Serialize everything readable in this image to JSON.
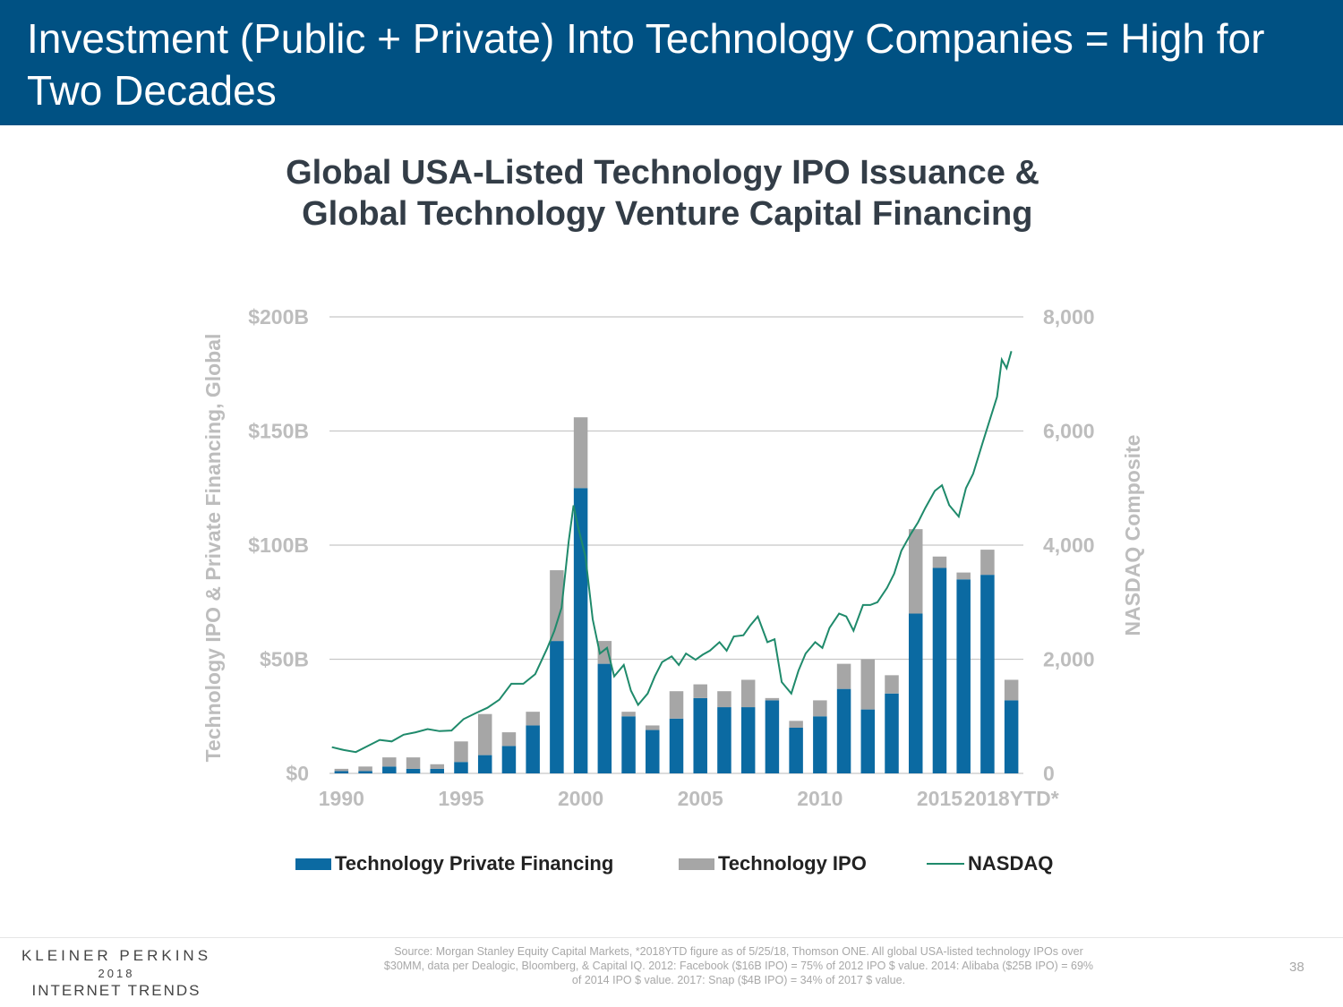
{
  "header": {
    "title": "Investment (Public + Private) Into Technology Companies = High for Two Decades"
  },
  "chart_title": {
    "line1": "Global USA-Listed Technology IPO Issuance &",
    "line2": " Global Technology Venture Capital Financing"
  },
  "chart_data": {
    "type": "bar",
    "stacked": true,
    "categories": [
      "1990",
      "1991",
      "1992",
      "1993",
      "1994",
      "1995",
      "1996",
      "1997",
      "1998",
      "1999",
      "2000",
      "2001",
      "2002",
      "2003",
      "2004",
      "2005",
      "2006",
      "2007",
      "2008",
      "2009",
      "2010",
      "2011",
      "2012",
      "2013",
      "2014",
      "2015",
      "2016",
      "2017",
      "2018YTD*"
    ],
    "series": [
      {
        "name": "Technology Private Financing",
        "color": "#0b6aa2",
        "values": [
          1,
          1,
          3,
          2,
          2,
          5,
          8,
          12,
          21,
          58,
          125,
          48,
          25,
          19,
          24,
          33,
          29,
          29,
          32,
          20,
          25,
          37,
          28,
          35,
          70,
          90,
          85,
          87,
          32
        ]
      },
      {
        "name": "Technology IPO",
        "color": "#a6a6a6",
        "values": [
          1,
          2,
          4,
          5,
          2,
          9,
          18,
          6,
          6,
          31,
          31,
          10,
          2,
          2,
          12,
          6,
          7,
          12,
          1,
          3,
          7,
          11,
          22,
          8,
          37,
          5,
          3,
          11,
          9
        ]
      },
      {
        "name": "NASDAQ",
        "color": "#1f8a6b",
        "axis": "right",
        "kind": "line",
        "values": [
          459,
          374,
          586,
          677,
          777,
          752,
          1052,
          1291,
          1570,
          2193,
          4697,
          1963,
          1335,
          2003,
          1887,
          2205,
          2415,
          2652,
          1577,
          2269,
          2652,
          2605,
          3020,
          4177,
          4736,
          5007,
          5383,
          6903,
          7434
        ]
      }
    ],
    "nasdaq_x": [
      1990,
      1990.5,
      1991,
      1991.5,
      1992,
      1992.5,
      1993,
      1993.5,
      1994,
      1994.5,
      1995,
      1995.5,
      1996,
      1996.5,
      1997,
      1997.5,
      1998,
      1998.5,
      1999,
      1999.3,
      1999.6,
      1999.9,
      2000.1,
      2000.3,
      2000.6,
      2000.9,
      2001.2,
      2001.5,
      2001.8,
      2002.2,
      2002.5,
      2002.8,
      2003.2,
      2003.5,
      2003.8,
      2004.2,
      2004.5,
      2004.8,
      2005.2,
      2005.5,
      2005.8,
      2006.2,
      2006.5,
      2006.8,
      2007.2,
      2007.5,
      2007.8,
      2008.2,
      2008.5,
      2008.8,
      2009.2,
      2009.5,
      2009.8,
      2010.2,
      2010.5,
      2010.8,
      2011.2,
      2011.5,
      2011.8,
      2012.2,
      2012.5,
      2012.8,
      2013.2,
      2013.5,
      2013.8,
      2014.2,
      2014.5,
      2014.8,
      2015.2,
      2015.5,
      2015.8,
      2016.2,
      2016.5,
      2016.8,
      2017.2,
      2017.5,
      2017.8,
      2018.0,
      2018.2,
      2018.4
    ],
    "nasdaq_y": [
      459,
      410,
      374,
      480,
      586,
      560,
      677,
      720,
      777,
      740,
      752,
      950,
      1052,
      1150,
      1291,
      1570,
      1570,
      1740,
      2193,
      2500,
      2900,
      4069,
      4697,
      4300,
      3800,
      2700,
      2100,
      2200,
      1700,
      1900,
      1450,
      1200,
      1400,
      1700,
      1950,
      2050,
      1900,
      2100,
      1990,
      2080,
      2150,
      2300,
      2150,
      2400,
      2420,
      2600,
      2750,
      2300,
      2350,
      1600,
      1400,
      1800,
      2100,
      2300,
      2200,
      2550,
      2800,
      2750,
      2500,
      2950,
      2950,
      3000,
      3250,
      3500,
      3900,
      4200,
      4400,
      4650,
      4950,
      5050,
      4700,
      4500,
      5000,
      5250,
      5800,
      6200,
      6600,
      7250,
      7100,
      7400
    ],
    "ylabel_left": "Technology IPO & Private Financing, Global",
    "ylabel_right": "NASDAQ Composite",
    "ylim_left": [
      0,
      200
    ],
    "ylim_right": [
      0,
      8000
    ],
    "yticks_left": [
      "$0",
      "$50B",
      "$100B",
      "$150B",
      "$200B"
    ],
    "yticks_right": [
      "0",
      "2,000",
      "4,000",
      "6,000",
      "8,000"
    ],
    "xtick_labels": [
      "1990",
      "1995",
      "2000",
      "2005",
      "2010",
      "2015",
      "2018YTD*"
    ],
    "grid": true,
    "legend_position": "bottom"
  },
  "legend": {
    "private": "Technology Private Financing",
    "ipo": "Technology IPO",
    "nasdaq": "NASDAQ"
  },
  "colors": {
    "header_bg": "#005183",
    "private": "#0b6aa2",
    "ipo": "#a6a6a6",
    "nasdaq": "#1f8a6b",
    "axis_text": "#bdbdbd"
  },
  "footer": {
    "logo_line1": "KLEINER PERKINS",
    "logo_line2": "2018",
    "logo_line3": "INTERNET TRENDS",
    "source": "Source: Morgan Stanley Equity Capital Markets, *2018YTD figure as of 5/25/18, Thomson ONE. All global USA-listed technology IPOs over $30MM, data per Dealogic, Bloomberg, & Capital IQ.  2012: Facebook ($16B IPO) = 75% of 2012 IPO $ value. 2014: Alibaba ($25B IPO) = 69% of 2014 IPO $ value. 2017: Snap ($4B IPO) = 34% of 2017 $ value.",
    "page_number": "38"
  }
}
